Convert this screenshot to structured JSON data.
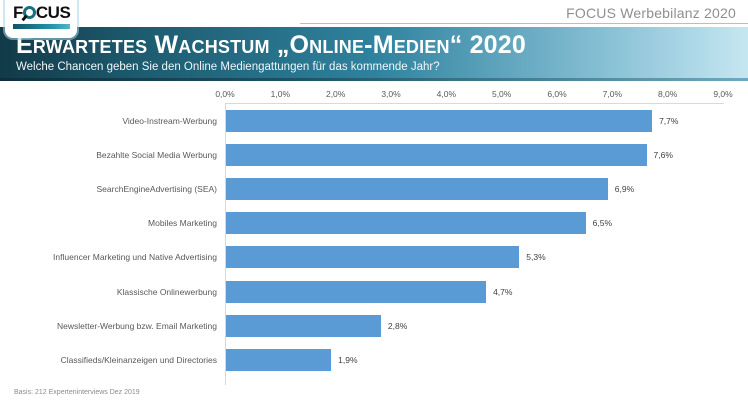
{
  "header": {
    "logo": {
      "part1": "F",
      "part2": "CUS",
      "name": "FOCUS"
    },
    "report_label": "FOCUS Werbebilanz 2020",
    "title": "Erwartetes Wachstum „Online-Medien“ 2020",
    "subtitle": "Welche Chancen geben Sie den Online Mediengattungen für das kommende Jahr?"
  },
  "chart_data": {
    "type": "bar",
    "orientation": "horizontal",
    "title": "Erwartetes Wachstum „Online-Medien“ 2020",
    "categories": [
      "Video-Instream-Werbung",
      "Bezahlte Social Media Werbung",
      "SearchEngineAdvertising (SEA)",
      "Mobiles Marketing",
      "Influencer Marketing und Native Advertising",
      "Klassische Onlinewerbung",
      "Newsletter-Werbung bzw. Email Marketing",
      "Classifieds/Kleinanzeigen und Directories"
    ],
    "values": [
      7.7,
      7.6,
      6.9,
      6.5,
      5.3,
      4.7,
      2.8,
      1.9
    ],
    "value_labels": [
      "7,7%",
      "7,6%",
      "6,9%",
      "6,5%",
      "5,3%",
      "4,7%",
      "2,8%",
      "1,9%"
    ],
    "xticks": [
      "0,0%",
      "1,0%",
      "2,0%",
      "3,0%",
      "4,0%",
      "5,0%",
      "6,0%",
      "7,0%",
      "8,0%",
      "9,0%"
    ],
    "xlim": [
      0,
      9
    ],
    "xlabel": "",
    "ylabel": "",
    "grid": false,
    "legend": false,
    "bar_color": "#5b9bd5"
  },
  "footer": {
    "basis": "Basis: 212 Experteninterviews Dez 2019"
  },
  "colors": {
    "banner_dark": "#123a48",
    "banner_light": "#c5e7f2",
    "bar_blue": "#5b9bd5",
    "axis_gray": "#d9d9d9",
    "text_gray": "#595959",
    "logo_teal": "#15707f"
  }
}
